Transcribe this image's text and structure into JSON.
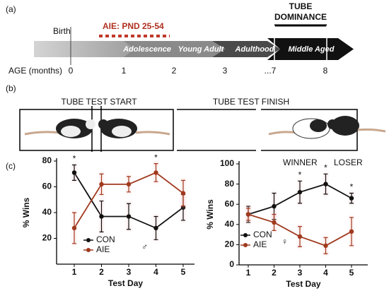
{
  "panel_a": {
    "label": "(a)",
    "birth": "Birth",
    "aie": "AIE: PND 25-54",
    "tube_dominance": [
      "TUBE",
      "DOMINANCE"
    ],
    "stages": [
      "Adolescence",
      "Young Adult",
      "Adulthood",
      "Middle Aged"
    ],
    "age_label": "AGE (months)",
    "ages": [
      "0",
      "1",
      "2",
      "3",
      "...7",
      "8"
    ]
  },
  "panel_b": {
    "label": "(b)",
    "start": "TUBE TEST START",
    "finish": "TUBE TEST FINISH",
    "winner": "WINNER",
    "loser": "LOSER"
  },
  "panel_c": {
    "label": "(c)"
  },
  "chart_data": [
    {
      "type": "line",
      "ylabel": "% Wins",
      "xlabel": "Test Day",
      "categories": [
        "1",
        "2",
        "3",
        "4",
        "5"
      ],
      "ylim": [
        0,
        80
      ],
      "yticks": [
        20,
        40,
        60,
        80
      ],
      "symbol": "♂",
      "series": [
        {
          "name": "CON",
          "color": "#111111",
          "values": [
            71,
            37,
            37,
            28,
            44
          ],
          "errors": [
            6,
            12,
            10,
            9,
            10
          ]
        },
        {
          "name": "AIE",
          "color": "#a0391e",
          "values": [
            28,
            62,
            62,
            71,
            55
          ],
          "errors": [
            12,
            8,
            6,
            7,
            10
          ]
        }
      ],
      "annotations": [
        {
          "text": "*",
          "x": "1"
        },
        {
          "text": "*",
          "x": "4"
        }
      ]
    },
    {
      "type": "line",
      "ylabel": "% Wins",
      "xlabel": "Test Day",
      "categories": [
        "1",
        "2",
        "3",
        "4",
        "5"
      ],
      "ylim": [
        0,
        100
      ],
      "yticks": [
        0,
        20,
        40,
        60,
        80,
        100
      ],
      "symbol": "♀",
      "series": [
        {
          "name": "CON",
          "color": "#111111",
          "values": [
            50,
            58,
            72,
            80,
            66
          ],
          "errors": [
            8,
            13,
            11,
            10,
            5
          ]
        },
        {
          "name": "AIE",
          "color": "#a0391e",
          "values": [
            50,
            42,
            28,
            19,
            33
          ],
          "errors": [
            6,
            8,
            10,
            8,
            14
          ]
        }
      ],
      "annotations": [
        {
          "text": "*",
          "x": "3"
        },
        {
          "text": "*",
          "x": "4"
        },
        {
          "text": "*",
          "x": "5"
        }
      ]
    }
  ]
}
